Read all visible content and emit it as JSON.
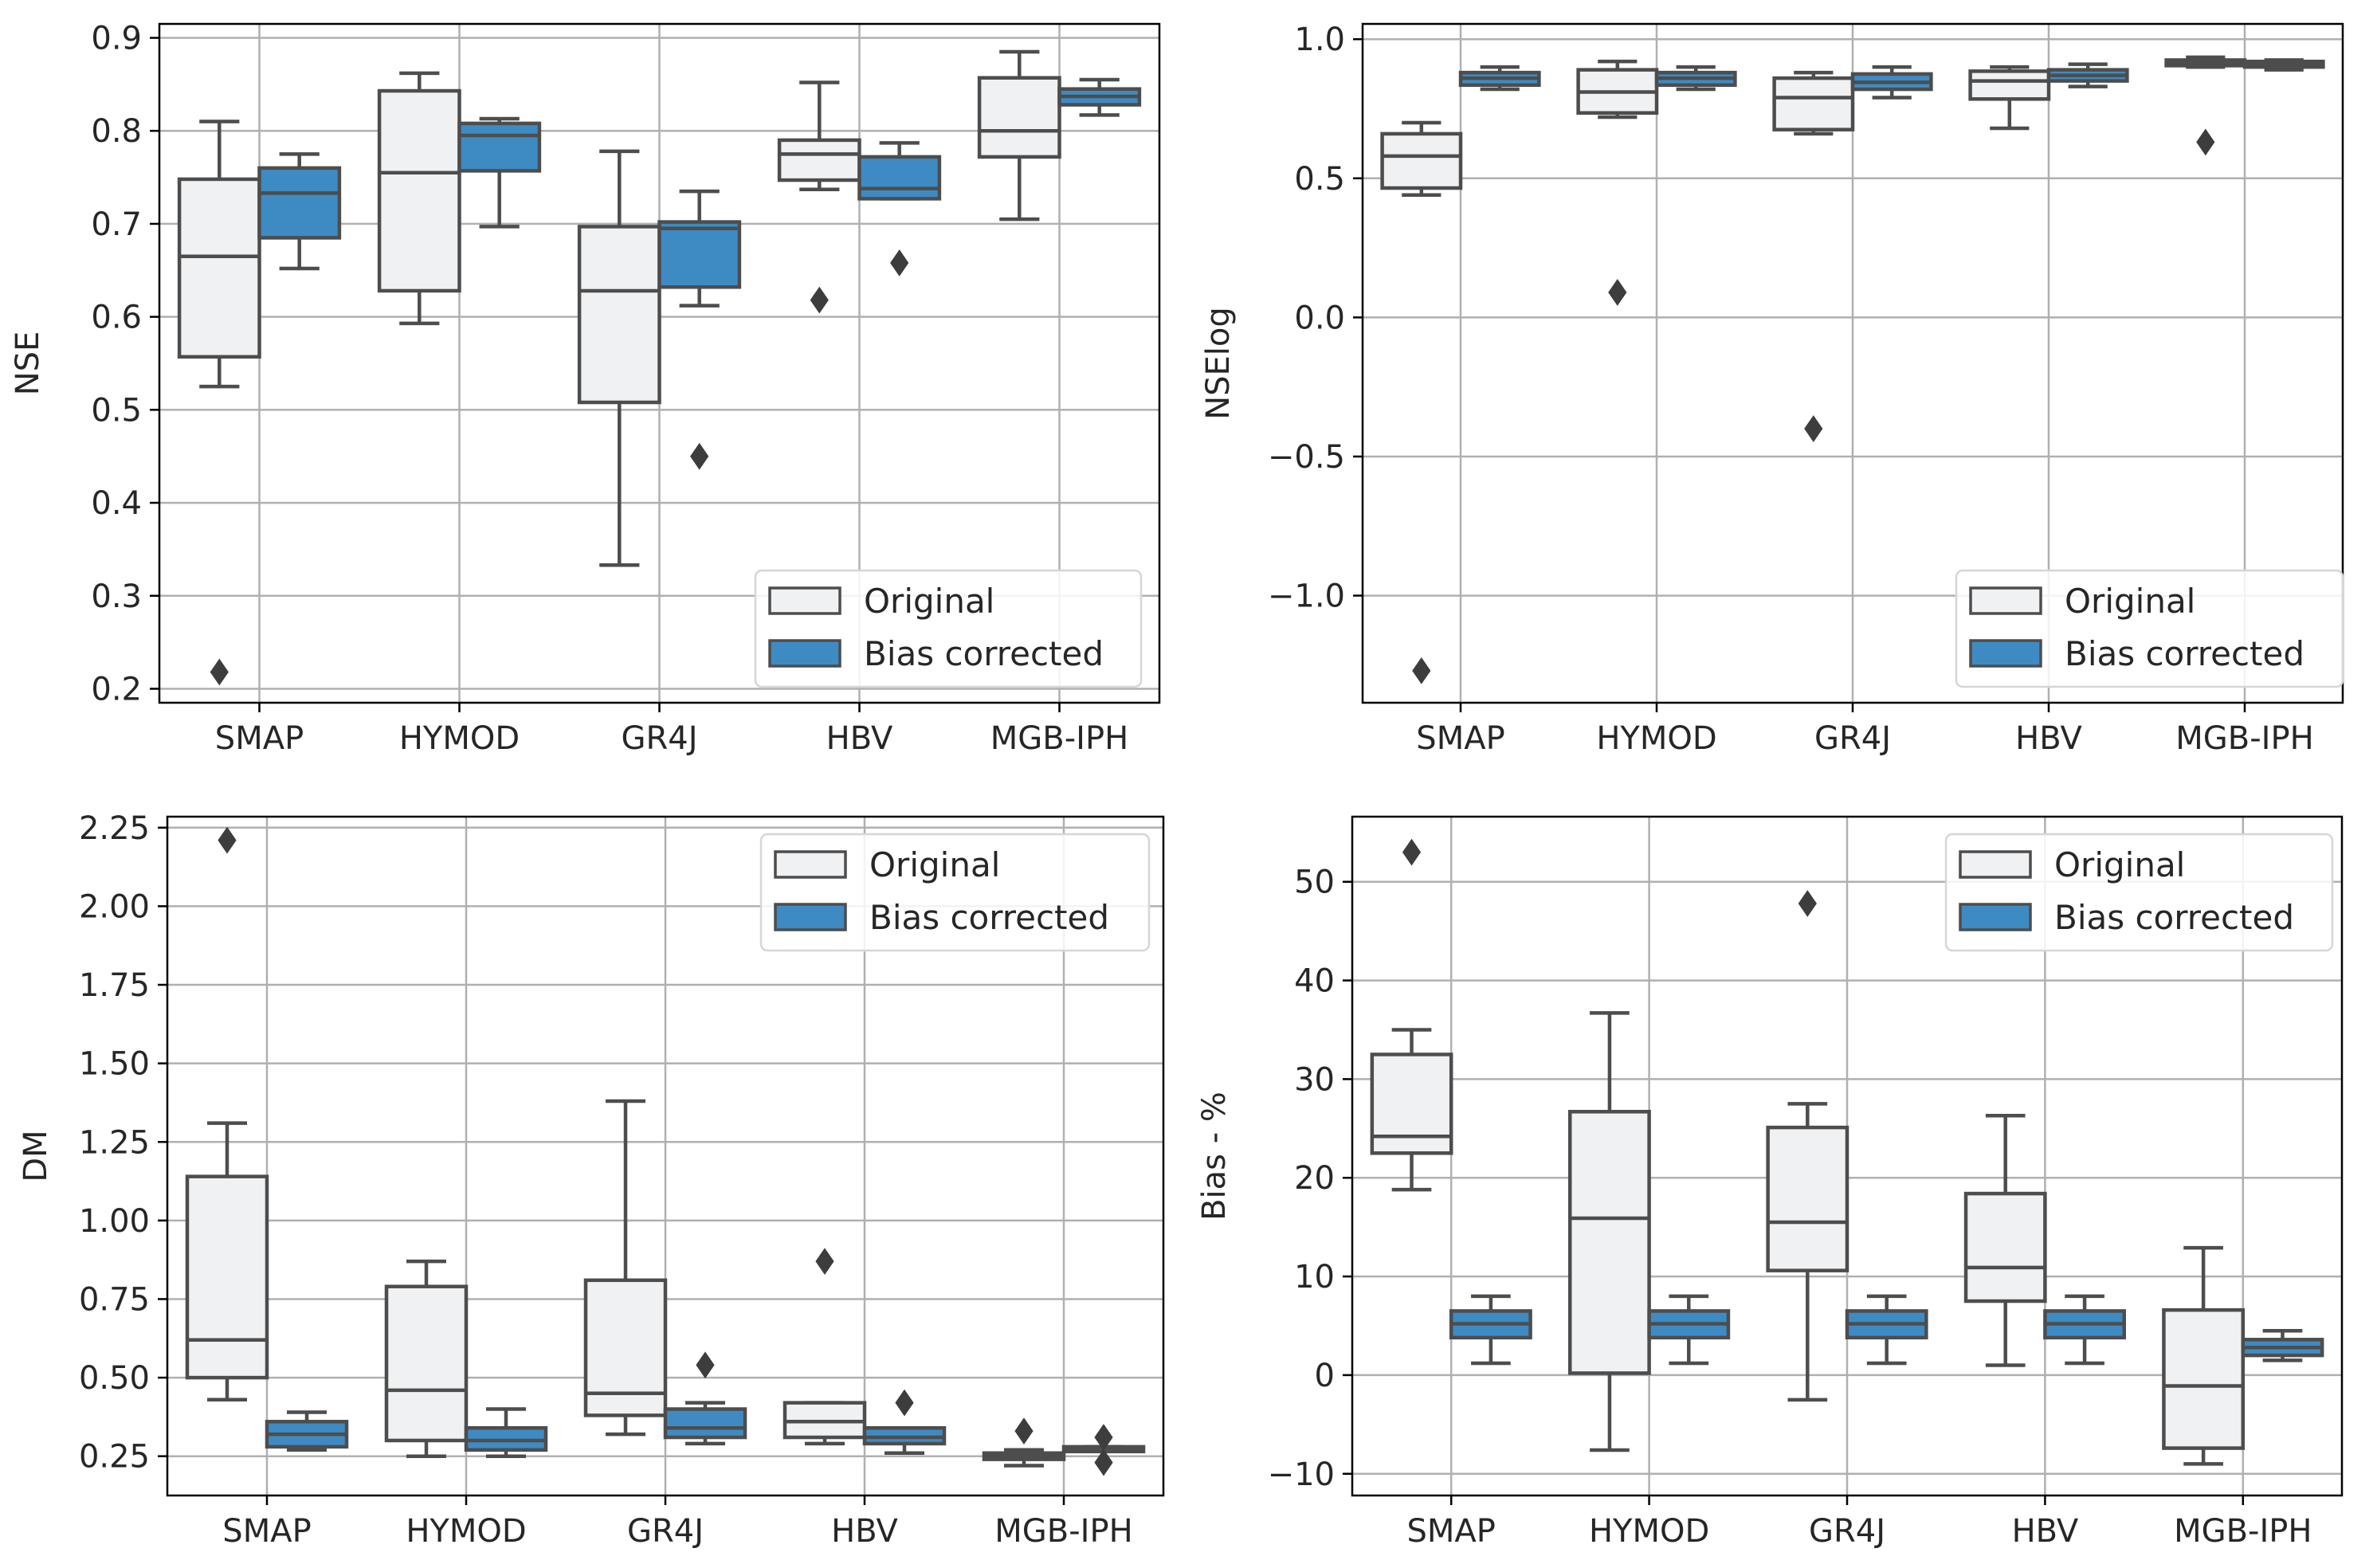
{
  "colors": {
    "original_fill": "#f0f1f3",
    "bias_fill": "#3e8bc4",
    "box_edge": "#4d4d4d",
    "grid": "#b0b0b0",
    "axes": "#000000"
  },
  "legend_items": [
    "Original",
    "Bias corrected"
  ],
  "chart_data": [
    {
      "type": "box",
      "ylabel": "NSE",
      "ylim": [
        0.185,
        0.915
      ],
      "yticks": [
        0.2,
        0.3,
        0.4,
        0.5,
        0.6,
        0.7,
        0.8,
        0.9
      ],
      "ytick_labels": [
        "0.2",
        "0.3",
        "0.4",
        "0.5",
        "0.6",
        "0.7",
        "0.8",
        "0.9"
      ],
      "categories": [
        "SMAP",
        "HYMOD",
        "GR4J",
        "HBV",
        "MGB-IPH"
      ],
      "legend": "bottom-right",
      "series": [
        {
          "name": "Original",
          "boxes": [
            {
              "whislo": 0.525,
              "q1": 0.557,
              "med": 0.665,
              "q3": 0.748,
              "whishi": 0.81,
              "fliers": [
                0.218
              ]
            },
            {
              "whislo": 0.593,
              "q1": 0.628,
              "med": 0.755,
              "q3": 0.843,
              "whishi": 0.862,
              "fliers": []
            },
            {
              "whislo": 0.333,
              "q1": 0.508,
              "med": 0.628,
              "q3": 0.697,
              "whishi": 0.778,
              "fliers": []
            },
            {
              "whislo": 0.737,
              "q1": 0.747,
              "med": 0.775,
              "q3": 0.79,
              "whishi": 0.852,
              "fliers": [
                0.618
              ]
            },
            {
              "whislo": 0.705,
              "q1": 0.772,
              "med": 0.8,
              "q3": 0.857,
              "whishi": 0.885,
              "fliers": []
            }
          ]
        },
        {
          "name": "Bias corrected",
          "boxes": [
            {
              "whislo": 0.652,
              "q1": 0.685,
              "med": 0.733,
              "q3": 0.76,
              "whishi": 0.775,
              "fliers": []
            },
            {
              "whislo": 0.697,
              "q1": 0.757,
              "med": 0.795,
              "q3": 0.808,
              "whishi": 0.813,
              "fliers": []
            },
            {
              "whislo": 0.612,
              "q1": 0.632,
              "med": 0.695,
              "q3": 0.702,
              "whishi": 0.735,
              "fliers": [
                0.45
              ]
            },
            {
              "whislo": 0.727,
              "q1": 0.727,
              "med": 0.738,
              "q3": 0.772,
              "whishi": 0.787,
              "fliers": [
                0.658
              ]
            },
            {
              "whislo": 0.817,
              "q1": 0.828,
              "med": 0.837,
              "q3": 0.845,
              "whishi": 0.855,
              "fliers": []
            }
          ]
        }
      ]
    },
    {
      "type": "box",
      "ylabel": "NSElog",
      "ylim": [
        -1.385,
        1.055
      ],
      "yticks": [
        -1.0,
        -0.5,
        0.0,
        0.5,
        1.0
      ],
      "ytick_labels": [
        "−1.0",
        "−0.5",
        "0.0",
        "0.5",
        "1.0"
      ],
      "categories": [
        "SMAP",
        "HYMOD",
        "GR4J",
        "HBV",
        "MGB-IPH"
      ],
      "legend": "bottom-right",
      "series": [
        {
          "name": "Original",
          "boxes": [
            {
              "whislo": 0.44,
              "q1": 0.465,
              "med": 0.58,
              "q3": 0.66,
              "whishi": 0.7,
              "fliers": [
                -1.27
              ]
            },
            {
              "whislo": 0.72,
              "q1": 0.735,
              "med": 0.81,
              "q3": 0.89,
              "whishi": 0.92,
              "fliers": [
                0.09
              ]
            },
            {
              "whislo": 0.66,
              "q1": 0.675,
              "med": 0.79,
              "q3": 0.86,
              "whishi": 0.88,
              "fliers": [
                -0.4
              ]
            },
            {
              "whislo": 0.68,
              "q1": 0.785,
              "med": 0.85,
              "q3": 0.885,
              "whishi": 0.9,
              "fliers": []
            },
            {
              "whislo": 0.9,
              "q1": 0.905,
              "med": 0.915,
              "q3": 0.925,
              "whishi": 0.935,
              "fliers": [
                0.63
              ]
            }
          ]
        },
        {
          "name": "Bias corrected",
          "boxes": [
            {
              "whislo": 0.82,
              "q1": 0.835,
              "med": 0.86,
              "q3": 0.88,
              "whishi": 0.9,
              "fliers": []
            },
            {
              "whislo": 0.82,
              "q1": 0.835,
              "med": 0.86,
              "q3": 0.88,
              "whishi": 0.9,
              "fliers": []
            },
            {
              "whislo": 0.79,
              "q1": 0.82,
              "med": 0.845,
              "q3": 0.875,
              "whishi": 0.9,
              "fliers": []
            },
            {
              "whislo": 0.83,
              "q1": 0.85,
              "med": 0.87,
              "q3": 0.89,
              "whishi": 0.91,
              "fliers": []
            },
            {
              "whislo": 0.89,
              "q1": 0.9,
              "med": 0.91,
              "q3": 0.92,
              "whishi": 0.925,
              "fliers": []
            }
          ]
        }
      ]
    },
    {
      "type": "box",
      "ylabel": "DM",
      "ylim": [
        0.125,
        2.285
      ],
      "yticks": [
        0.25,
        0.5,
        0.75,
        1.0,
        1.25,
        1.5,
        1.75,
        2.0,
        2.25
      ],
      "ytick_labels": [
        "0.25",
        "0.50",
        "0.75",
        "1.00",
        "1.25",
        "1.50",
        "1.75",
        "2.00",
        "2.25"
      ],
      "categories": [
        "SMAP",
        "HYMOD",
        "GR4J",
        "HBV",
        "MGB-IPH"
      ],
      "legend": "top-right",
      "series": [
        {
          "name": "Original",
          "boxes": [
            {
              "whislo": 0.43,
              "q1": 0.5,
              "med": 0.62,
              "q3": 1.14,
              "whishi": 1.31,
              "fliers": [
                2.21
              ]
            },
            {
              "whislo": 0.25,
              "q1": 0.3,
              "med": 0.46,
              "q3": 0.79,
              "whishi": 0.87,
              "fliers": []
            },
            {
              "whislo": 0.32,
              "q1": 0.38,
              "med": 0.45,
              "q3": 0.81,
              "whishi": 1.38,
              "fliers": []
            },
            {
              "whislo": 0.29,
              "q1": 0.31,
              "med": 0.36,
              "q3": 0.42,
              "whishi": 0.42,
              "fliers": [
                0.87
              ]
            },
            {
              "whislo": 0.22,
              "q1": 0.24,
              "med": 0.25,
              "q3": 0.26,
              "whishi": 0.27,
              "fliers": [
                0.33
              ]
            }
          ]
        },
        {
          "name": "Bias corrected",
          "boxes": [
            {
              "whislo": 0.27,
              "q1": 0.28,
              "med": 0.32,
              "q3": 0.36,
              "whishi": 0.39,
              "fliers": []
            },
            {
              "whislo": 0.25,
              "q1": 0.27,
              "med": 0.3,
              "q3": 0.34,
              "whishi": 0.4,
              "fliers": []
            },
            {
              "whislo": 0.29,
              "q1": 0.31,
              "med": 0.34,
              "q3": 0.4,
              "whishi": 0.42,
              "fliers": [
                0.54
              ]
            },
            {
              "whislo": 0.26,
              "q1": 0.29,
              "med": 0.31,
              "q3": 0.34,
              "whishi": 0.34,
              "fliers": [
                0.42
              ]
            },
            {
              "whislo": 0.265,
              "q1": 0.265,
              "med": 0.27,
              "q3": 0.28,
              "whishi": 0.28,
              "fliers": [
                0.31,
                0.23
              ]
            }
          ]
        }
      ]
    },
    {
      "type": "box",
      "ylabel": "Bias - %",
      "ylim": [
        -12.2,
        56.6
      ],
      "yticks": [
        -10,
        0,
        10,
        20,
        30,
        40,
        50
      ],
      "ytick_labels": [
        "−10",
        "0",
        "10",
        "20",
        "30",
        "40",
        "50"
      ],
      "categories": [
        "SMAP",
        "HYMOD",
        "GR4J",
        "HBV",
        "MGB-IPH"
      ],
      "legend": "top-right",
      "series": [
        {
          "name": "Original",
          "boxes": [
            {
              "whislo": 18.8,
              "q1": 22.5,
              "med": 24.2,
              "q3": 32.5,
              "whishi": 35.0,
              "fliers": [
                53.0
              ]
            },
            {
              "whislo": -7.6,
              "q1": 0.2,
              "med": 15.9,
              "q3": 26.7,
              "whishi": 36.7,
              "fliers": []
            },
            {
              "whislo": -2.5,
              "q1": 10.6,
              "med": 15.5,
              "q3": 25.1,
              "whishi": 27.5,
              "fliers": [
                47.8
              ]
            },
            {
              "whislo": 1.0,
              "q1": 7.5,
              "med": 10.9,
              "q3": 18.4,
              "whishi": 26.3,
              "fliers": []
            },
            {
              "whislo": -9.0,
              "q1": -7.4,
              "med": -1.1,
              "q3": 6.6,
              "whishi": 12.9,
              "fliers": []
            }
          ]
        },
        {
          "name": "Bias corrected",
          "boxes": [
            {
              "whislo": 1.2,
              "q1": 3.8,
              "med": 5.2,
              "q3": 6.5,
              "whishi": 8.0,
              "fliers": []
            },
            {
              "whislo": 1.2,
              "q1": 3.8,
              "med": 5.2,
              "q3": 6.5,
              "whishi": 8.0,
              "fliers": []
            },
            {
              "whislo": 1.2,
              "q1": 3.8,
              "med": 5.2,
              "q3": 6.5,
              "whishi": 8.0,
              "fliers": []
            },
            {
              "whislo": 1.2,
              "q1": 3.8,
              "med": 5.2,
              "q3": 6.5,
              "whishi": 8.0,
              "fliers": []
            },
            {
              "whislo": 1.5,
              "q1": 2.0,
              "med": 2.8,
              "q3": 3.6,
              "whishi": 4.5,
              "fliers": []
            }
          ]
        }
      ]
    }
  ]
}
